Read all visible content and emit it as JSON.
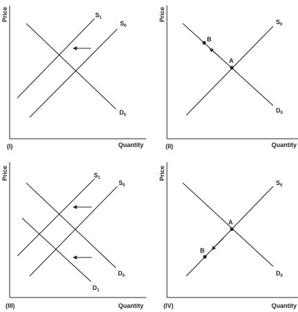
{
  "axis_labels": {
    "y": "Price",
    "x": "Quantity"
  },
  "panels": [
    {
      "id": "I",
      "label": "(I)",
      "curves": [
        {
          "name": "S",
          "sub": "1"
        },
        {
          "name": "S",
          "sub": "0"
        },
        {
          "name": "D",
          "sub": "0"
        }
      ],
      "points": []
    },
    {
      "id": "II",
      "label": "(II)",
      "curves": [
        {
          "name": "S",
          "sub": "0"
        },
        {
          "name": "D",
          "sub": "0"
        }
      ],
      "points": [
        "A",
        "B"
      ]
    },
    {
      "id": "III",
      "label": "(III)",
      "curves": [
        {
          "name": "S",
          "sub": "1"
        },
        {
          "name": "S",
          "sub": "0"
        },
        {
          "name": "D",
          "sub": "0"
        },
        {
          "name": "D",
          "sub": "1"
        }
      ],
      "points": []
    },
    {
      "id": "IV",
      "label": "(IV)",
      "curves": [
        {
          "name": "S",
          "sub": "0"
        },
        {
          "name": "D",
          "sub": "0"
        }
      ],
      "points": [
        "A",
        "B"
      ]
    }
  ]
}
